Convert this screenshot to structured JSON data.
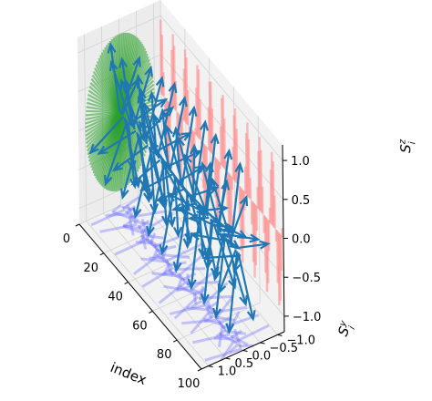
{
  "chart_data": {
    "type": "3d-quiver",
    "title": "",
    "axes": {
      "x": {
        "label": "index",
        "range": [
          0,
          100
        ],
        "ticks": [
          "0",
          "20",
          "40",
          "60",
          "80",
          "100"
        ]
      },
      "y": {
        "label": "S_i^y",
        "range": [
          -1.2,
          1.2
        ],
        "ticks": [
          "−1.0",
          "−0.5",
          "0.0",
          "0.5",
          "1.0"
        ]
      },
      "z": {
        "label": "S_i^z",
        "range": [
          -1.2,
          1.2
        ],
        "ticks": [
          "−1.0",
          "−0.5",
          "0.0",
          "0.5",
          "1.0"
        ]
      }
    },
    "grid": true,
    "panes": "light gray",
    "n_spins": 100,
    "series": [
      {
        "kind": "spin arrows",
        "color": "#1f77b4",
        "description_values": {
          "index_range": [
            0,
            100
          ],
          "magnitude": 1.0
        }
      },
      {
        "kind": "projection onto y-z plane",
        "color": "#2ca02c"
      },
      {
        "kind": "projection onto index-z plane",
        "color": "#ff7f7f"
      },
      {
        "kind": "projection onto index-y plane",
        "color": "#6666ff"
      }
    ]
  },
  "colors": {
    "arrows": "#1f77b4",
    "yz_projection": "#2ca02c",
    "xz_projection": "#ff7f7f",
    "xy_projection": "#6666ff",
    "pane": "#f2f2f2",
    "grid": "#d3d3d3"
  }
}
